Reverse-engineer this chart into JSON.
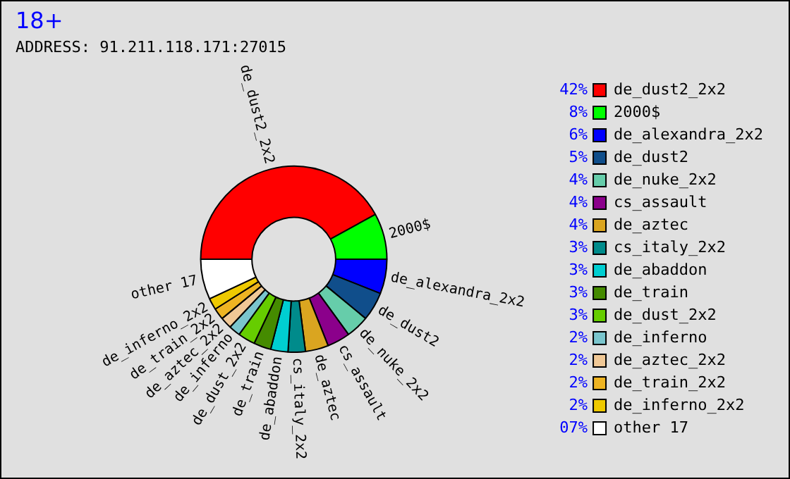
{
  "chart_data": {
    "type": "donut",
    "title": "18+",
    "annotations": [
      "ADDRESS: 91.211.118.171:27015"
    ],
    "legend": "right",
    "categories": [
      "de_dust2_2x2",
      "2000$",
      "de_alexandra_2x2",
      "de_dust2",
      "de_nuke_2x2",
      "cs_assault",
      "de_aztec",
      "cs_italy_2x2",
      "de_abaddon",
      "de_train",
      "de_dust_2x2",
      "de_inferno",
      "de_aztec_2x2",
      "de_train_2x2",
      "de_inferno_2x2",
      "other 17"
    ],
    "values": [
      42,
      8,
      6,
      5,
      4,
      4,
      4,
      3,
      3,
      3,
      3,
      2,
      2,
      2,
      2,
      7
    ],
    "value_labels": [
      "42%",
      "8%",
      "6%",
      "5%",
      "4%",
      "4%",
      "4%",
      "3%",
      "3%",
      "3%",
      "3%",
      "2%",
      "2%",
      "2%",
      "2%",
      "07%"
    ],
    "colors": [
      "#ff0000",
      "#00ff00",
      "#0000ff",
      "#104e8b",
      "#66cdaa",
      "#8b008b",
      "#daa520",
      "#008b8b",
      "#00ced1",
      "#458b00",
      "#66cd00",
      "#7ac5cd",
      "#f0c896",
      "#eeb422",
      "#eec900",
      "#ffffff"
    ]
  }
}
